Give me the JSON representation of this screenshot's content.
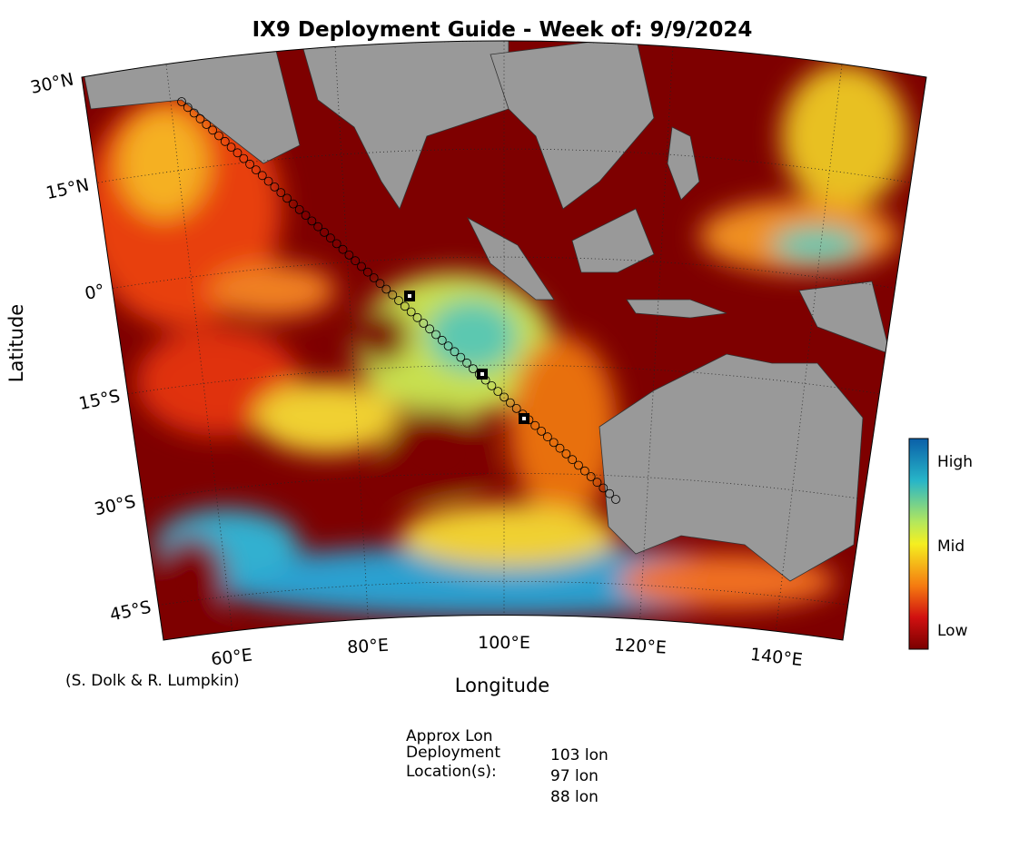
{
  "title": "IX9 Deployment Guide - Week of: 9/9/2024",
  "map": {
    "y_label": "Latitude",
    "x_label": "Longitude",
    "lat_ticks": [
      {
        "value": 30,
        "label": "30°N"
      },
      {
        "value": 15,
        "label": "15°N"
      },
      {
        "value": 0,
        "label": "0°"
      },
      {
        "value": -15,
        "label": "15°S"
      },
      {
        "value": -30,
        "label": "30°S"
      },
      {
        "value": -45,
        "label": "45°S"
      }
    ],
    "lon_ticks": [
      {
        "value": 60,
        "label": "60°E"
      },
      {
        "value": 80,
        "label": "80°E"
      },
      {
        "value": 100,
        "label": "100°E"
      },
      {
        "value": 120,
        "label": "120°E"
      },
      {
        "value": 140,
        "label": "140°E"
      }
    ],
    "colorbar": {
      "labels": [
        "High",
        "Mid",
        "Low"
      ]
    }
  },
  "credit": "(S. Dolk & R. Lumpkin)",
  "deployment": {
    "heading": [
      "Approx Lon",
      "Deployment",
      "Location(s):"
    ],
    "locations": [
      "103 lon",
      "97 lon",
      "88 lon"
    ]
  }
}
